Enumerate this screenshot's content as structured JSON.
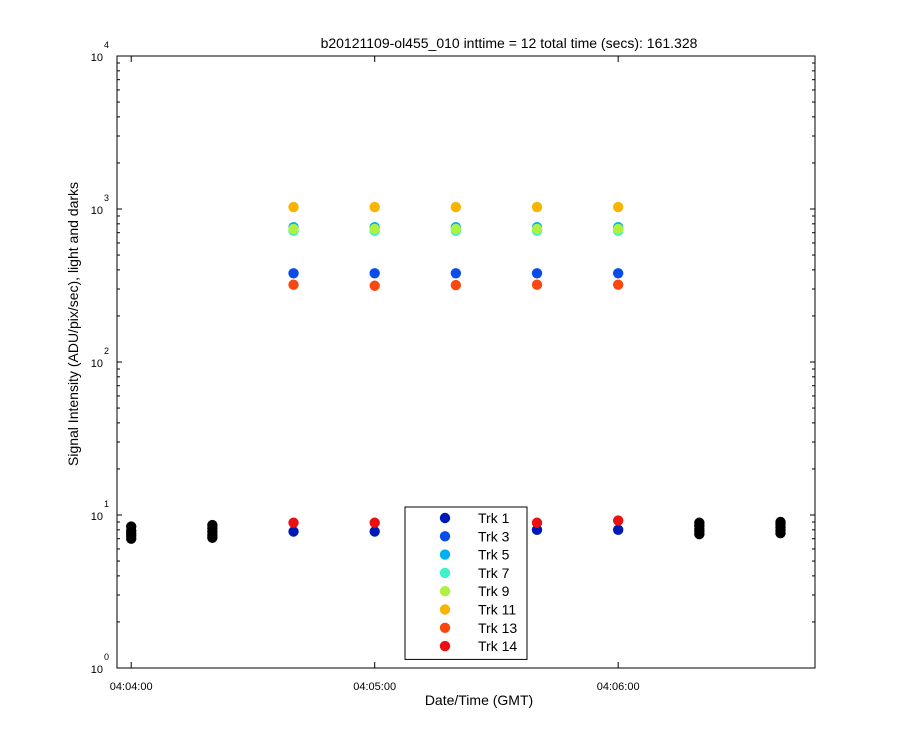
{
  "chart_data": {
    "type": "scatter",
    "title": "b20121109-ol455_010 inttime = 12 total time (secs): 161.328",
    "xlabel": "Date/Time (GMT)",
    "ylabel": "Signal Intensity (ADU/pix/sec), light and darks",
    "x_ticks": [
      "04:04:00",
      "04:05:00",
      "04:06:00"
    ],
    "x_tick_seconds": [
      240,
      300,
      360
    ],
    "xlim_seconds": [
      236.5,
      408.5
    ],
    "yscale": "log",
    "ylim": [
      1,
      10000
    ],
    "y_tick_values": [
      1,
      10,
      100,
      1000,
      10000
    ],
    "y_tick_base": "10",
    "y_tick_exponents": [
      "0",
      "1",
      "2",
      "3",
      "4"
    ],
    "grid": false,
    "legend_position": "bottom-center",
    "light_x_seconds": [
      280,
      300,
      320,
      340,
      360
    ],
    "dark_x_seconds": [
      240,
      260,
      380,
      400
    ],
    "series": [
      {
        "name": "Trk 1",
        "color": "#0018b4",
        "values": [
          7.8,
          7.8,
          7.9,
          8.0,
          8.0
        ]
      },
      {
        "name": "Trk 3",
        "color": "#0a4ce8",
        "values": [
          380,
          380,
          380,
          380,
          380
        ]
      },
      {
        "name": "Trk 5",
        "color": "#00b0f0",
        "values": [
          760,
          760,
          760,
          760,
          760
        ]
      },
      {
        "name": "Trk 7",
        "color": "#40f0c8",
        "values": [
          720,
          720,
          720,
          720,
          720
        ]
      },
      {
        "name": "Trk 9",
        "color": "#b0f040",
        "values": [
          740,
          740,
          740,
          740,
          740
        ]
      },
      {
        "name": "Trk 11",
        "color": "#f8b400",
        "values": [
          1030,
          1030,
          1030,
          1030,
          1030
        ]
      },
      {
        "name": "Trk 13",
        "color": "#f84810",
        "values": [
          320,
          315,
          318,
          320,
          320
        ]
      },
      {
        "name": "Trk 14",
        "color": "#e81010",
        "values": [
          8.9,
          8.9,
          8.8,
          8.9,
          9.2
        ]
      }
    ],
    "darks": {
      "color": "#000000",
      "values": [
        [
          7.0,
          7.3,
          7.6,
          7.9,
          8.4
        ],
        [
          7.1,
          7.4,
          7.8,
          8.2,
          8.6
        ],
        [
          7.5,
          7.8,
          8.1,
          8.5,
          8.9
        ],
        [
          7.6,
          7.9,
          8.3,
          8.7,
          9.0
        ]
      ]
    }
  }
}
